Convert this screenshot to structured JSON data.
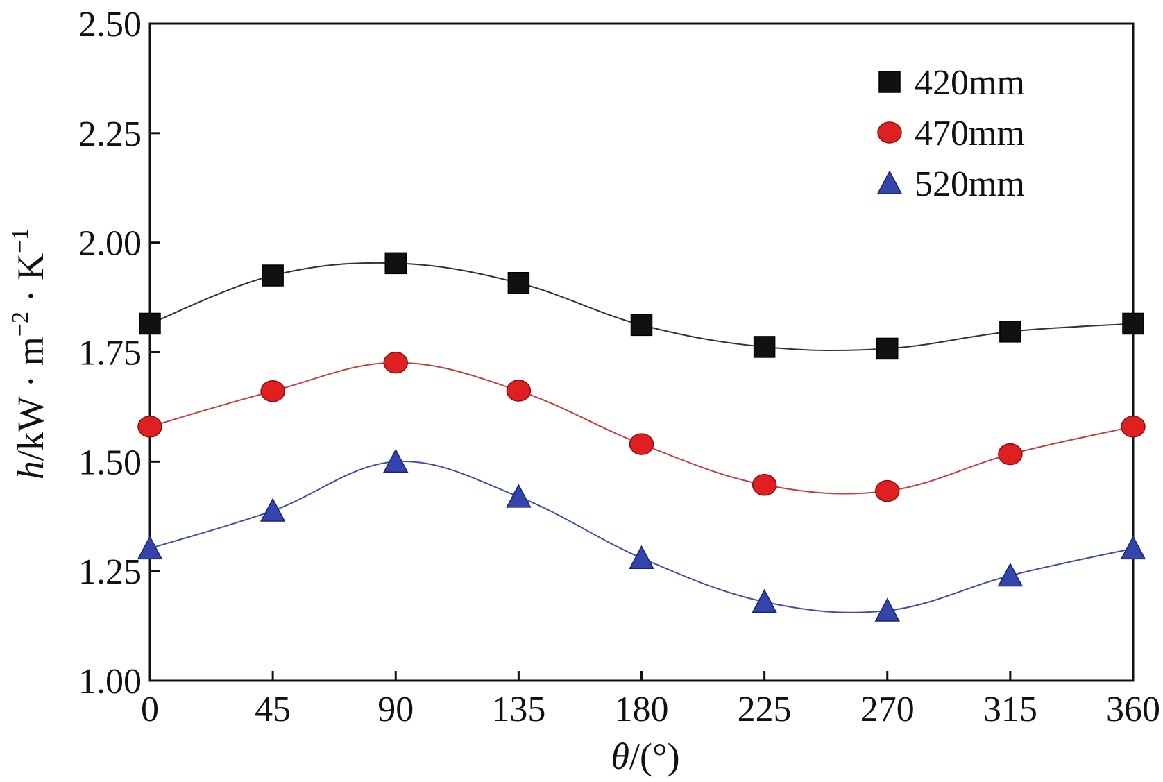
{
  "chart_data": {
    "type": "line",
    "x": [
      0,
      45,
      90,
      135,
      180,
      225,
      270,
      315,
      360
    ],
    "xlim": [
      0,
      360
    ],
    "ylim": [
      1.0,
      2.5
    ],
    "xticks": [
      "0",
      "45",
      "90",
      "135",
      "180",
      "225",
      "270",
      "315",
      "360"
    ],
    "yticks": [
      "1.00",
      "1.25",
      "1.50",
      "1.75",
      "2.00",
      "2.25",
      "2.50"
    ],
    "xlabel": {
      "symbol": "θ",
      "unit": "/(°)"
    },
    "ylabel": {
      "symbol": "h",
      "unit_main": "/kW · m",
      "exp1": "−2",
      "mid": " · K",
      "exp2": "−1"
    },
    "grid": false,
    "legend_position": "top-right",
    "series": [
      {
        "name": "420mm",
        "marker": "square",
        "color": "#111111",
        "line_color": "#333333",
        "values": [
          1.815,
          1.925,
          1.953,
          1.908,
          1.812,
          1.762,
          1.758,
          1.797,
          1.815
        ]
      },
      {
        "name": "470mm",
        "marker": "circle",
        "color": "#e02020",
        "line_color": "#c04040",
        "values": [
          1.58,
          1.661,
          1.726,
          1.662,
          1.54,
          1.447,
          1.433,
          1.517,
          1.58
        ]
      },
      {
        "name": "520mm",
        "marker": "triangle",
        "color": "#3344aa",
        "line_color": "#4050a0",
        "values": [
          1.302,
          1.388,
          1.5,
          1.42,
          1.28,
          1.18,
          1.16,
          1.24,
          1.302
        ]
      }
    ]
  }
}
